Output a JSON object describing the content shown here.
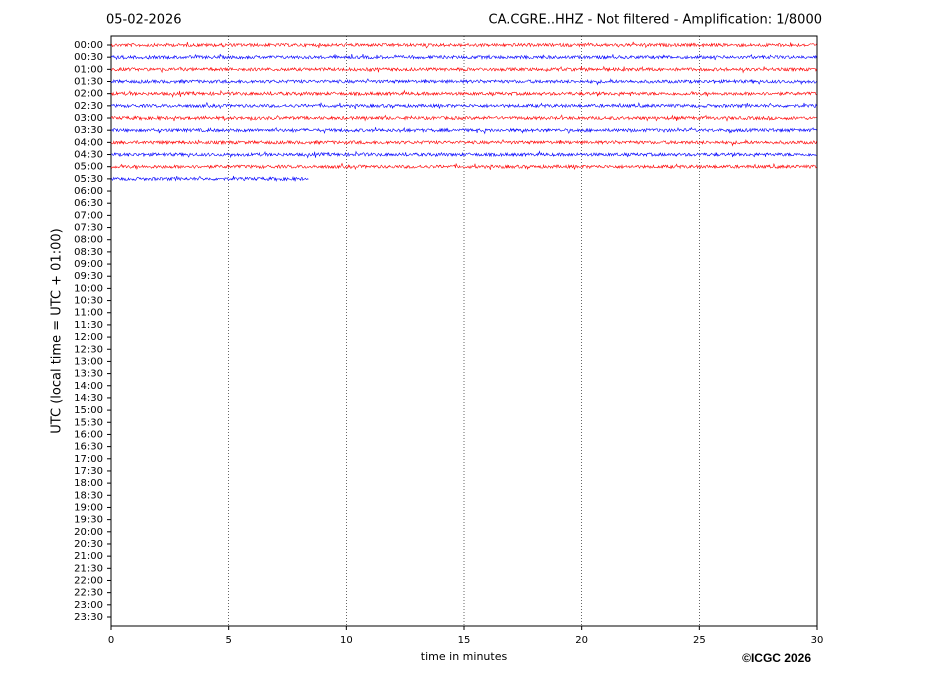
{
  "chart_data": {
    "type": "helicorder",
    "date": "05-02-2026",
    "title": "CA.CGRE..HHZ - Not filtered - Amplification: 1/8000",
    "xlabel": "time in minutes",
    "ylabel": "UTC (local time = UTC + 01:00)",
    "copyright": "©ICGC 2026",
    "xlim": [
      0,
      30
    ],
    "xticks": [
      0,
      5,
      10,
      15,
      20,
      25,
      30
    ],
    "grid": true,
    "colors": [
      "#ff0000",
      "#0000ff"
    ],
    "categories": [
      "00:00",
      "00:30",
      "01:00",
      "01:30",
      "02:00",
      "02:30",
      "03:00",
      "03:30",
      "04:00",
      "04:30",
      "05:00",
      "05:30",
      "06:00",
      "06:30",
      "07:00",
      "07:30",
      "08:00",
      "08:30",
      "09:00",
      "09:30",
      "10:00",
      "10:30",
      "11:00",
      "11:30",
      "12:00",
      "12:30",
      "13:00",
      "13:30",
      "14:00",
      "14:30",
      "15:00",
      "15:30",
      "16:00",
      "16:30",
      "17:00",
      "17:30",
      "18:00",
      "18:30",
      "19:00",
      "19:30",
      "20:00",
      "20:30",
      "21:00",
      "21:30",
      "22:00",
      "22:30",
      "23:00",
      "23:30"
    ],
    "values": [
      30,
      30,
      30,
      30,
      30,
      30,
      30,
      30,
      30,
      30,
      30,
      8.4,
      null,
      null,
      null,
      null,
      null,
      null,
      null,
      null,
      null,
      null,
      null,
      null,
      null,
      null,
      null,
      null,
      null,
      null,
      null,
      null,
      null,
      null,
      null,
      null,
      null,
      null,
      null,
      null,
      null,
      null,
      null,
      null,
      null,
      null,
      null,
      null
    ]
  }
}
